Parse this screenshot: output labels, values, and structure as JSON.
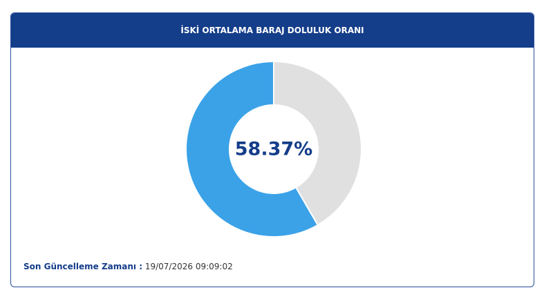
{
  "chart_data": {
    "type": "donut",
    "title": "İSKİ ORTALAMA BARAJ DOLULUK ORANI",
    "values": [
      58.37,
      41.63
    ],
    "value_labels": [
      "58.37%",
      null
    ],
    "colors": [
      "#3ba2e8",
      "#e0e0e0"
    ]
  },
  "footer": {
    "label": "Son Güncelleme Zamanı :",
    "value": "19/07/2026 09:09:02"
  }
}
